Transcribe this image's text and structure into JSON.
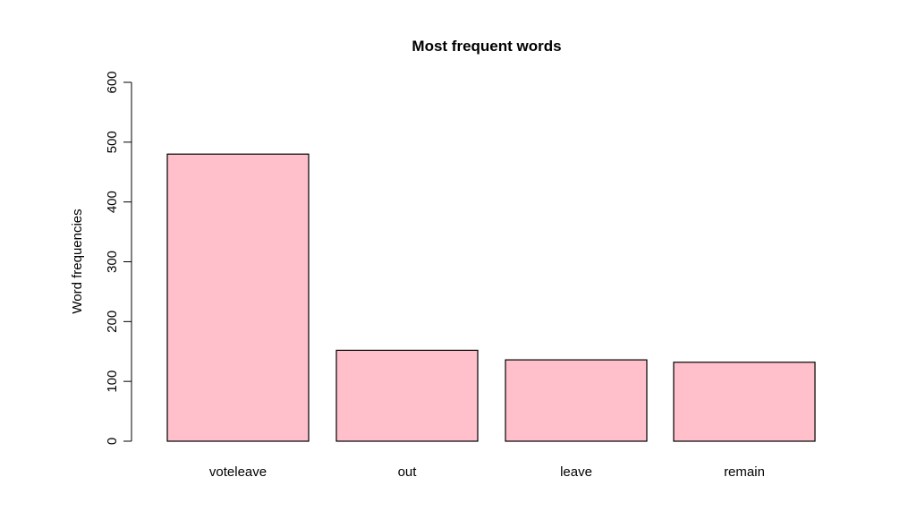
{
  "chart_data": {
    "type": "bar",
    "title": "Most frequent words",
    "xlabel": "",
    "ylabel": "Word frequencies",
    "categories": [
      "voteleave",
      "out",
      "leave",
      "remain"
    ],
    "values": [
      480,
      152,
      136,
      132
    ],
    "ylim": [
      0,
      600
    ],
    "yticks": [
      0,
      100,
      200,
      300,
      400,
      500,
      600
    ],
    "grid": false,
    "legend": "none",
    "bar_fill": "#FFC0CB",
    "bar_stroke": "#000000"
  }
}
